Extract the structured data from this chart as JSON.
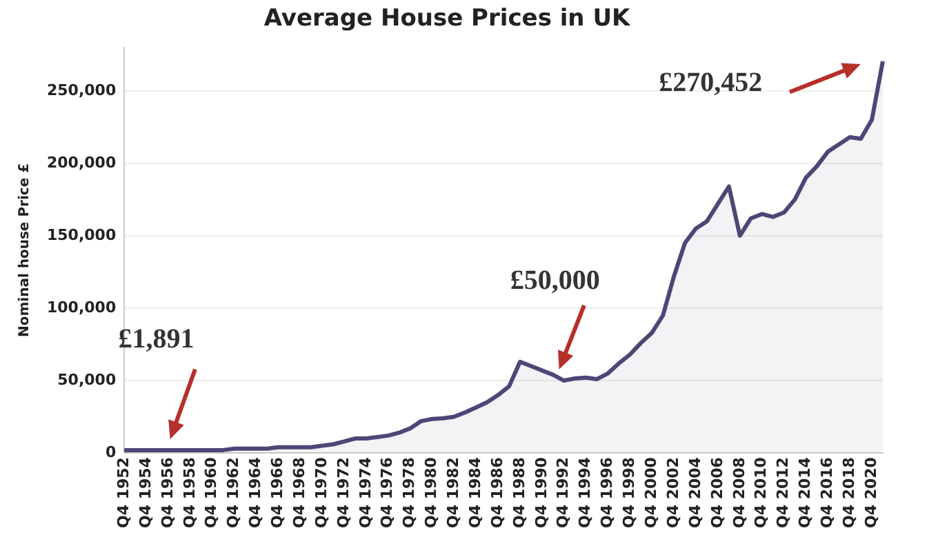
{
  "chart_data": {
    "type": "area",
    "title": "Average House Prices in UK",
    "ylabel": "Nominal house Price £",
    "categories": [
      "Q4 1952",
      null,
      "Q4 1954",
      null,
      "Q4 1956",
      null,
      "Q4 1958",
      null,
      "Q4 1960",
      null,
      "Q4 1962",
      null,
      "Q4 1964",
      null,
      "Q4 1966",
      null,
      "Q4 1968",
      null,
      "Q4 1970",
      null,
      "Q4 1972",
      null,
      "Q4 1974",
      null,
      "Q4 1976",
      null,
      "Q4 1978",
      null,
      "Q4 1980",
      null,
      "Q4 1982",
      null,
      "Q4 1984",
      null,
      "Q4 1986",
      null,
      "Q4 1988",
      null,
      "Q4 1990",
      null,
      "Q4 1992",
      null,
      "Q4 1994",
      null,
      "Q4 1996",
      null,
      "Q4 1998",
      null,
      "Q4 2000",
      null,
      "Q4 2002",
      null,
      "Q4 2004",
      null,
      "Q4 2006",
      null,
      "Q4 2008",
      null,
      "Q4 2010",
      null,
      "Q4 2012",
      null,
      "Q4 2014",
      null,
      "Q4 2016",
      null,
      "Q4 2018",
      null,
      "Q4 2020",
      null
    ],
    "series": [
      {
        "color": "#4f4577",
        "values": [
          2000,
          2000,
          2000,
          2000,
          2000,
          2000,
          2000,
          2000,
          2000,
          2000,
          3000,
          3000,
          3000,
          3000,
          4000,
          4000,
          4000,
          4000,
          5000,
          6000,
          8000,
          10000,
          10000,
          11000,
          12000,
          14000,
          17000,
          22000,
          23500,
          24000,
          25000,
          28000,
          31500,
          35000,
          40000,
          46000,
          63000,
          60000,
          57000,
          54000,
          50000,
          51500,
          52000,
          51000,
          55000,
          62000,
          68000,
          76000,
          83000,
          95000,
          122000,
          145000,
          155000,
          160000,
          172000,
          184000,
          150000,
          162000,
          165000,
          163000,
          166000,
          175000,
          190000,
          198000,
          208000,
          213000,
          218000,
          217000,
          230000,
          270452
        ]
      }
    ],
    "ylim": [
      0,
      280000
    ],
    "yticks": [
      {
        "value": 0,
        "label": "0"
      },
      {
        "value": 50000,
        "label": "50,000"
      },
      {
        "value": 100000,
        "label": "100,000"
      },
      {
        "value": 150000,
        "label": "150,000"
      },
      {
        "value": 200000,
        "label": "200,000"
      },
      {
        "value": 250000,
        "label": "250,000"
      }
    ],
    "grid": "y",
    "legend": false,
    "annotations": [
      "£1,891",
      "£50,000",
      "£270,452"
    ]
  }
}
